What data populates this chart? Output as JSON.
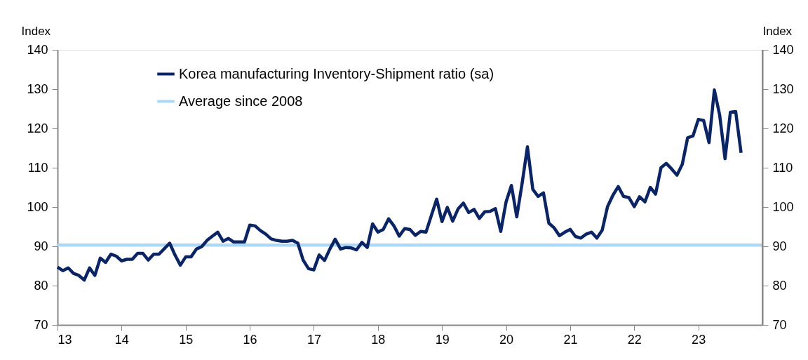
{
  "chart_data": {
    "type": "line",
    "ylabel": "Index",
    "y2label": "Index",
    "xlim": [
      13,
      24
    ],
    "xticks": [
      13,
      14,
      15,
      16,
      17,
      18,
      19,
      20,
      21,
      22,
      23
    ],
    "ylim": [
      70,
      140
    ],
    "yticks": [
      70,
      80,
      90,
      100,
      110,
      120,
      130,
      140
    ],
    "y2lim": [
      70,
      140
    ],
    "y2ticks": [
      70,
      80,
      90,
      100,
      110,
      120,
      130,
      140
    ],
    "grid": false,
    "legend": "top left",
    "marker": "none",
    "line_style": "solid",
    "series": [
      {
        "name": "Korea manufacturing Inventory-Shipment ratio (sa)",
        "color": "#0b2463",
        "x": [
          13,
          13.083,
          13.167,
          13.25,
          13.333,
          13.417,
          13.5,
          13.583,
          13.667,
          13.75,
          13.833,
          13.917,
          14,
          14.083,
          14.167,
          14.25,
          14.333,
          14.417,
          14.5,
          14.583,
          14.667,
          14.75,
          14.833,
          14.917,
          15,
          15.083,
          15.167,
          15.25,
          15.333,
          15.417,
          15.5,
          15.583,
          15.667,
          15.75,
          15.833,
          15.917,
          16,
          16.083,
          16.167,
          16.25,
          16.333,
          16.417,
          16.5,
          16.583,
          16.667,
          16.75,
          16.833,
          16.917,
          17,
          17.083,
          17.167,
          17.25,
          17.333,
          17.417,
          17.5,
          17.583,
          17.667,
          17.75,
          17.833,
          17.917,
          18,
          18.083,
          18.167,
          18.25,
          18.333,
          18.417,
          18.5,
          18.583,
          18.667,
          18.75,
          18.833,
          18.917,
          19,
          19.083,
          19.167,
          19.25,
          19.333,
          19.417,
          19.5,
          19.583,
          19.667,
          19.75,
          19.833,
          19.917,
          20,
          20.083,
          20.167,
          20.25,
          20.333,
          20.417,
          20.5,
          20.583,
          20.667,
          20.75,
          20.833,
          20.917,
          21,
          21.083,
          21.167,
          21.25,
          21.333,
          21.417,
          21.5,
          21.583,
          21.667,
          21.75,
          21.833,
          21.917,
          22,
          22.083,
          22.167,
          22.25,
          22.333,
          22.417,
          22.5,
          22.583,
          22.667,
          22.75,
          22.833,
          22.917,
          23,
          23.083,
          23.167,
          23.25,
          23.333,
          23.417,
          23.5,
          23.583,
          23.667
        ],
        "values": [
          84.7,
          83.8,
          84.5,
          83.1,
          82.6,
          81.4,
          84.5,
          82.6,
          87.0,
          85.9,
          88.0,
          87.5,
          86.3,
          86.7,
          86.7,
          88.2,
          88.2,
          86.5,
          88.0,
          88.0,
          89.4,
          90.8,
          87.8,
          85.2,
          87.3,
          87.3,
          89.3,
          89.9,
          91.5,
          92.6,
          93.6,
          91.3,
          92.0,
          91.1,
          91.1,
          91.1,
          95.4,
          95.2,
          94.0,
          93.1,
          91.9,
          91.5,
          91.3,
          91.3,
          91.5,
          90.8,
          86.5,
          84.3,
          84.0,
          87.8,
          86.4,
          89.3,
          91.8,
          89.3,
          89.7,
          89.6,
          89.1,
          91.0,
          89.7,
          95.7,
          93.6,
          94.3,
          97.0,
          95.2,
          92.6,
          94.5,
          94.3,
          92.8,
          93.8,
          93.6,
          97.8,
          102.0,
          96.3,
          99.9,
          96.4,
          99.5,
          101.0,
          98.6,
          99.4,
          97.1,
          98.8,
          98.9,
          99.6,
          93.8,
          101.3,
          105.5,
          97.5,
          106.0,
          115.3,
          104.5,
          102.7,
          103.6,
          95.9,
          94.7,
          92.7,
          93.6,
          94.3,
          92.5,
          92.1,
          93.1,
          93.6,
          92.1,
          94.1,
          100.1,
          103.0,
          105.2,
          102.7,
          102.4,
          100.1,
          102.6,
          101.3,
          105.0,
          103.3,
          110.0,
          111.1,
          109.7,
          108.1,
          110.9,
          117.6,
          118.1,
          122.3,
          122.0,
          116.4,
          129.8,
          123.4,
          112.3,
          124.1,
          124.3,
          113.8
        ]
      }
    ],
    "ref_lines": [
      {
        "axis": "y",
        "value": 90.3,
        "label": "Average since 2008",
        "color": "#a9d8fa",
        "line_style": "solid"
      }
    ]
  }
}
